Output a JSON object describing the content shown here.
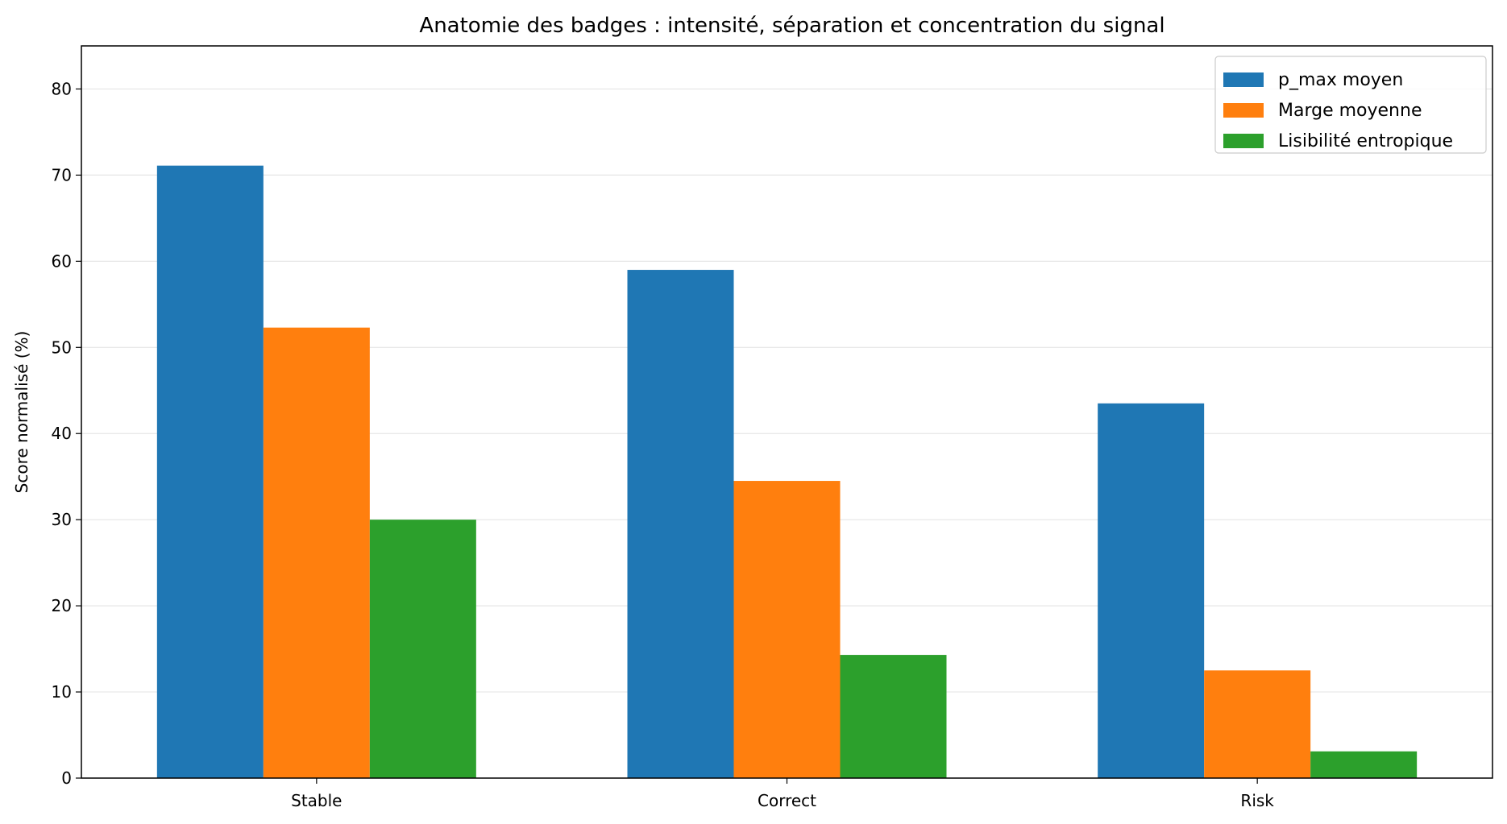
{
  "chart_data": {
    "type": "bar",
    "title": "Anatomie des badges : intensité, séparation et concentration du signal",
    "xlabel": "",
    "ylabel": "Score normalisé (%)",
    "categories": [
      "Stable",
      "Correct",
      "Risk"
    ],
    "series": [
      {
        "name": "p_max moyen",
        "color": "#1f77b4",
        "values": [
          71.1,
          59.0,
          43.5
        ]
      },
      {
        "name": "Marge moyenne",
        "color": "#ff7f0e",
        "values": [
          52.3,
          34.5,
          12.5
        ]
      },
      {
        "name": "Lisibilité entropique",
        "color": "#2ca02c",
        "values": [
          30.0,
          14.3,
          3.1
        ]
      }
    ],
    "ylim": [
      0,
      85
    ],
    "yticks": [
      0,
      10,
      20,
      30,
      40,
      50,
      60,
      70,
      80
    ],
    "grid": "horizontal",
    "legend_position": "top-right"
  }
}
